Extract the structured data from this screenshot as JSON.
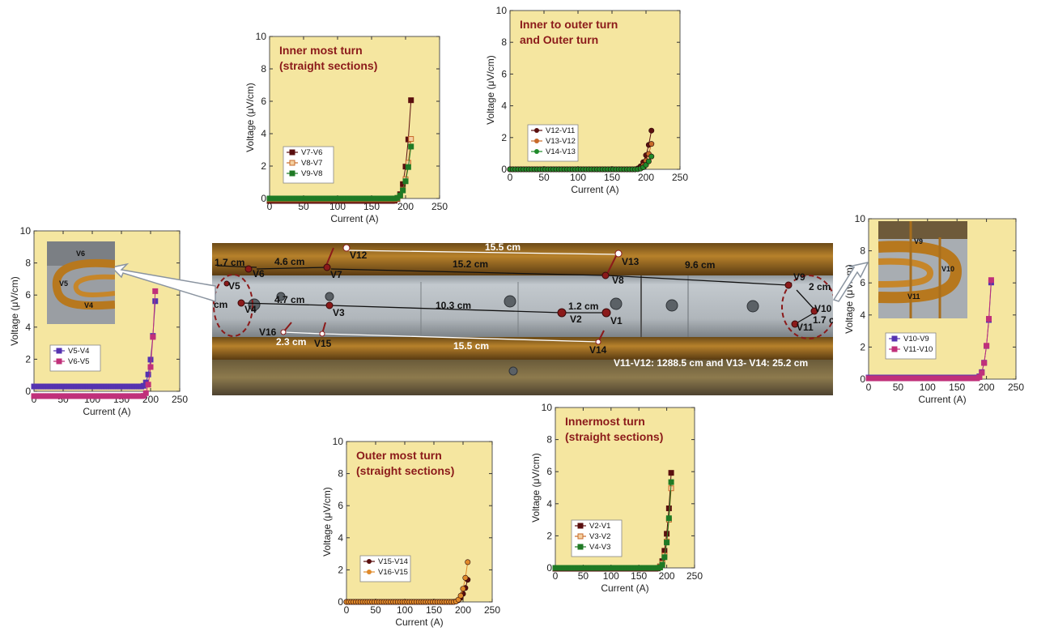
{
  "charts": [
    {
      "id": "c1",
      "title": "Inner most turn\n(straight sections)",
      "xlabel": "Current (A)",
      "ylabel": "Voltage (μV/cm)",
      "xlim": [
        0,
        250
      ],
      "ylim": [
        0,
        10
      ],
      "xticks": [
        0,
        50,
        100,
        150,
        200,
        250
      ],
      "yticks": [
        0,
        2,
        4,
        6,
        8,
        10
      ],
      "legend_position": "center-left",
      "series": [
        {
          "name": "V7-V6",
          "color": "#5a0f0f",
          "marker": "square",
          "filled": true,
          "onset": 180,
          "end_value": 7.6,
          "power": 3.2,
          "base": -0.15
        },
        {
          "name": "V8-V7",
          "color": "#c86a2a",
          "marker": "square",
          "filled": false,
          "onset": 182,
          "end_value": 4.6,
          "power": 3.0,
          "base": -0.05
        },
        {
          "name": "V9-V8",
          "color": "#1f7a25",
          "marker": "square",
          "filled": true,
          "onset": 182,
          "end_value": 4.0,
          "power": 3.0,
          "base": 0.0
        }
      ]
    },
    {
      "id": "c2",
      "title": "Inner  to outer turn\n and Outer  turn",
      "xlabel": "Current (A)",
      "ylabel": "Voltage (μV/cm)",
      "xlim": [
        0,
        250
      ],
      "ylim": [
        0,
        10
      ],
      "xticks": [
        0,
        50,
        100,
        150,
        200,
        250
      ],
      "yticks": [
        0,
        2,
        4,
        6,
        8,
        10
      ],
      "legend_position": "center-left",
      "series": [
        {
          "name": "V12-V11",
          "color": "#5a0f0f",
          "marker": "circle",
          "filled": true,
          "onset": 180,
          "end_value": 3.0,
          "power": 3.0,
          "base": 0.0
        },
        {
          "name": "V13-V12",
          "color": "#c86a2a",
          "marker": "circle",
          "filled": true,
          "onset": 182,
          "end_value": 2.0,
          "power": 3.0,
          "base": 0.0
        },
        {
          "name": "V14-V13",
          "color": "#1f8a2a",
          "marker": "circle",
          "filled": true,
          "onset": 185,
          "end_value": 1.0,
          "power": 2.5,
          "base": 0.0
        }
      ]
    },
    {
      "id": "c3",
      "title": "",
      "xlabel": "Current (A)",
      "ylabel": "Voltage (μV/cm)",
      "xlim": [
        0,
        250
      ],
      "ylim": [
        0,
        10
      ],
      "xticks": [
        0,
        50,
        100,
        150,
        200,
        250
      ],
      "yticks": [
        0,
        2,
        4,
        6,
        8,
        10
      ],
      "legend_position": "center-left",
      "series": [
        {
          "name": "V5-V4",
          "color": "#5533b0",
          "marker": "square",
          "filled": true,
          "onset": 183,
          "end_value": 7.0,
          "power": 3.0,
          "base": 0.3
        },
        {
          "name": "V6-V5",
          "color": "#c0307a",
          "marker": "square",
          "filled": true,
          "onset": 185,
          "end_value": 8.1,
          "power": 3.0,
          "base": -0.3
        }
      ]
    },
    {
      "id": "c4",
      "title": "",
      "xlabel": "Current (A)",
      "ylabel": "Voltage (μV/cm)",
      "xlim": [
        0,
        250
      ],
      "ylim": [
        0,
        10
      ],
      "xticks": [
        0,
        50,
        100,
        150,
        200,
        250
      ],
      "yticks": [
        0,
        2,
        4,
        6,
        8,
        10
      ],
      "legend_position": "center-left",
      "series": [
        {
          "name": "V10-V9",
          "color": "#5533b0",
          "marker": "square",
          "filled": true,
          "onset": 182,
          "end_value": 7.5,
          "power": 3.0,
          "base": 0.1
        },
        {
          "name": "V11-V10",
          "color": "#c0307a",
          "marker": "square",
          "filled": true,
          "onset": 182,
          "end_value": 7.7,
          "power": 3.0,
          "base": 0.05
        }
      ]
    },
    {
      "id": "c5",
      "title": "Outer most turn\n(straight sections)",
      "xlabel": "Current (A)",
      "ylabel": "Voltage (μV/cm)",
      "xlim": [
        0,
        250
      ],
      "ylim": [
        0,
        10
      ],
      "xticks": [
        0,
        50,
        100,
        150,
        200,
        250
      ],
      "yticks": [
        0,
        2,
        4,
        6,
        8,
        10
      ],
      "legend_position": "lower-left",
      "series": [
        {
          "name": "V15-V14",
          "color": "#5a0f0f",
          "marker": "circle",
          "filled": true,
          "onset": 180,
          "end_value": 1.7,
          "power": 3.0,
          "base": 0.0
        },
        {
          "name": "V16-V15",
          "color": "#e08a2a",
          "marker": "circle",
          "filled": true,
          "onset": 182,
          "end_value": 3.1,
          "power": 3.0,
          "base": 0.0
        }
      ]
    },
    {
      "id": "c6",
      "title": "Innermost turn\n(straight sections)",
      "xlabel": "Current (A)",
      "ylabel": "Voltage (μV/cm)",
      "xlim": [
        0,
        250
      ],
      "ylim": [
        0,
        10
      ],
      "xticks": [
        0,
        50,
        100,
        150,
        200,
        250
      ],
      "yticks": [
        0,
        2,
        4,
        6,
        8,
        10
      ],
      "legend_position": "center-left",
      "series": [
        {
          "name": "V2-V1",
          "color": "#5a0f0f",
          "marker": "square",
          "filled": true,
          "onset": 180,
          "end_value": 7.3,
          "power": 3.0,
          "base": -0.05
        },
        {
          "name": "V3-V2",
          "color": "#c86a2a",
          "marker": "square",
          "filled": false,
          "onset": 182,
          "end_value": 6.2,
          "power": 3.0,
          "base": 0.0
        },
        {
          "name": "V4-V3",
          "color": "#1f7a25",
          "marker": "square",
          "filled": true,
          "onset": 184,
          "end_value": 6.8,
          "power": 3.0,
          "base": 0.0
        }
      ]
    }
  ],
  "photo": {
    "labels": {
      "V1": "V1",
      "V2": "V2",
      "V3": "V3",
      "V4": "V4",
      "V5": "V5",
      "V6": "V6",
      "V7": "V7",
      "V8": "V8",
      "V9": "V9",
      "V10": "V10",
      "V11": "V11",
      "V12": "V12",
      "V13": "V13",
      "V14": "V14",
      "V15": "V15",
      "V16": "V16"
    },
    "dims": {
      "d_1_7_top": "1.7 cm",
      "d_4_6": "4.6 cm",
      "d_15_2": "15.2 cm",
      "d_15_5_top": "15.5 cm",
      "d_9_6": "9.6 cm",
      "d_4_7": "4.7 cm",
      "d_10_3": "10.3 cm",
      "d_1_2": "1.2 cm",
      "d_2_3": "2.3 cm",
      "d_15_5_bottom": "15.5 cm",
      "d_2_right": "2 cm",
      "d_1_7_right": "1.7 cm",
      "d_cm_left": "cm"
    },
    "note": "V11-V12: 1288.5 cm and  V13- V14: 25.2 cm",
    "inset_left": {
      "v6": "V6",
      "v5": "V5",
      "v4": "V4"
    },
    "inset_right": {
      "v9": "V9",
      "v10": "V10",
      "v11": "V11"
    }
  },
  "colors": {
    "plot_bg": "#f5e6a0",
    "title_color": "#8b1a1a",
    "photo_metal": "#b6bdc4",
    "photo_copper": "#b5781e"
  }
}
